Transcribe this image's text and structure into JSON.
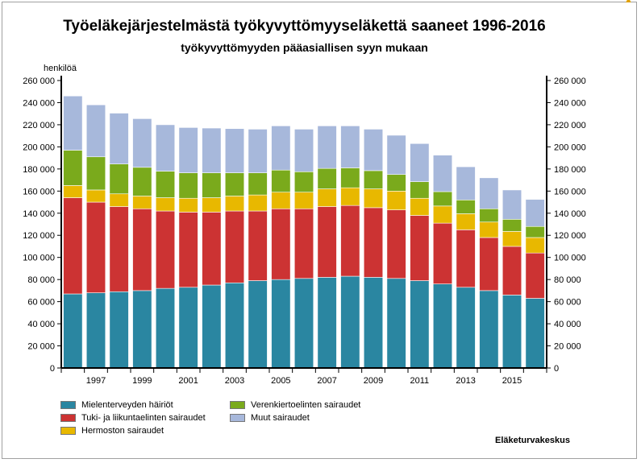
{
  "title": "Työeläkejärjestelmästä työkyvyttömyyseläkettä saaneet 1996-2016",
  "subtitle": "työkyvyttömyyden pääasiallisen syyn mukaan",
  "credit": "Eläketurvakeskus",
  "chart_data": {
    "type": "bar",
    "stacked": true,
    "ylabel": "henkilöä",
    "ylim": [
      0,
      260000
    ],
    "ytick_step": 20000,
    "ytick_labels": [
      "0",
      "20 000",
      "40 000",
      "60 000",
      "80 000",
      "100 000",
      "120 000",
      "140 000",
      "160 000",
      "180 000",
      "200 000",
      "220 000",
      "240 000",
      "260 000"
    ],
    "categories": [
      "1996",
      "1997",
      "1998",
      "1999",
      "2000",
      "2001",
      "2002",
      "2003",
      "2004",
      "2005",
      "2006",
      "2007",
      "2008",
      "2009",
      "2010",
      "2011",
      "2012",
      "2013",
      "2014",
      "2015",
      "2016"
    ],
    "xtick_labels": [
      "",
      "1997",
      "",
      "1999",
      "",
      "2001",
      "",
      "2003",
      "",
      "2005",
      "",
      "2007",
      "",
      "2009",
      "",
      "2011",
      "",
      "2013",
      "",
      "2015",
      ""
    ],
    "grid": false,
    "legend_position": "bottom",
    "series": [
      {
        "name": "Mielenterveyden häiriöt",
        "color": "#2a86a1",
        "values": [
          67000,
          68000,
          69000,
          70000,
          72000,
          73000,
          75000,
          77000,
          79000,
          80000,
          81000,
          82000,
          83000,
          82000,
          81000,
          79000,
          76000,
          73000,
          70000,
          66000,
          63000
        ]
      },
      {
        "name": "Tuki- ja liikuntaelinten sairaudet",
        "color": "#cc3333",
        "values": [
          87000,
          82000,
          77000,
          74000,
          70000,
          68000,
          66000,
          65000,
          63000,
          64000,
          63000,
          64000,
          64000,
          63000,
          62000,
          59000,
          55000,
          52000,
          48000,
          44000,
          41000
        ]
      },
      {
        "name": "Hermoston sairaudet",
        "color": "#e8b800",
        "values": [
          11000,
          11000,
          11500,
          11500,
          12000,
          12500,
          13000,
          13500,
          14500,
          15000,
          15000,
          16000,
          16000,
          17000,
          17000,
          15500,
          15500,
          14500,
          14000,
          13500,
          14000
        ]
      },
      {
        "name": "Verenkiertoelinten sairaudet",
        "color": "#7aaa1c",
        "values": [
          32000,
          30000,
          27000,
          26000,
          24000,
          23000,
          22500,
          21000,
          20000,
          20000,
          18500,
          18500,
          18000,
          16500,
          15000,
          15000,
          13000,
          12500,
          12000,
          11000,
          10000
        ]
      },
      {
        "name": "Muut sairaudet",
        "color": "#a7b8db",
        "values": [
          49000,
          47000,
          46000,
          44000,
          42000,
          41000,
          40500,
          40000,
          39500,
          40000,
          38500,
          38500,
          38000,
          37500,
          35500,
          34500,
          33000,
          30000,
          28000,
          26500,
          24500
        ]
      }
    ],
    "legend_order": [
      0,
      3,
      1,
      4,
      2
    ]
  }
}
